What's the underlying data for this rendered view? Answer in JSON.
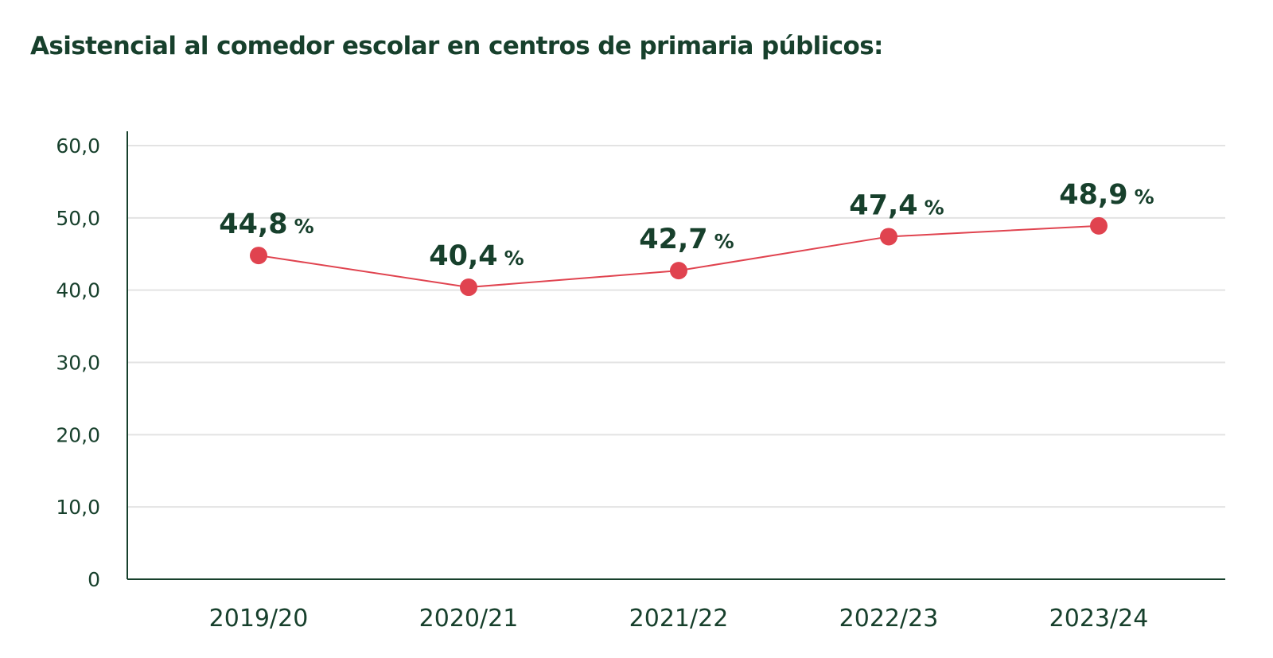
{
  "chart_data": {
    "type": "line",
    "title": "Asistencial al comedor escolar en centros de primaria públicos:",
    "categories": [
      "2019/20",
      "2020/21",
      "2021/22",
      "2022/23",
      "2023/24"
    ],
    "series": [
      {
        "values": [
          44.8,
          40.4,
          42.7,
          47.4,
          48.9
        ],
        "labels": [
          "44,8",
          "40,4",
          "42,7",
          "47,4",
          "48,9"
        ],
        "label_unit": "%"
      }
    ],
    "y_ticks": [
      0,
      10,
      20,
      30,
      40,
      50,
      60
    ],
    "y_tick_labels": [
      "0",
      "10,0",
      "20,0",
      "30,0",
      "40,0",
      "50,0",
      "60,0"
    ],
    "ylim": [
      0,
      60
    ],
    "grid": true,
    "legend": "none",
    "colors": {
      "line": "#e0434f",
      "marker": "#e0434f",
      "text": "#17402c",
      "axis": "#17402c",
      "grid": "#e3e3e3"
    }
  }
}
